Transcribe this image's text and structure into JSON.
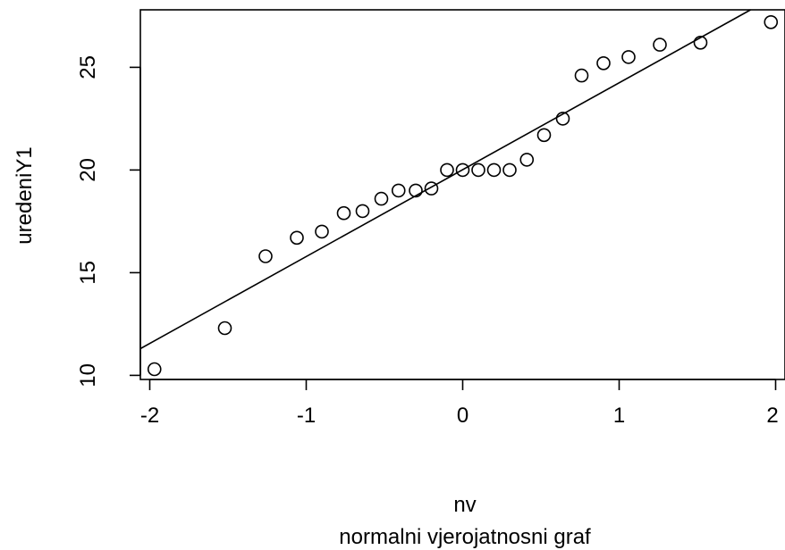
{
  "chart_data": {
    "type": "scatter",
    "title": "",
    "xlabel": "nv",
    "subtitle": "normalni vjerojatnosni graf",
    "ylabel": "uredeniY1",
    "xlim": [
      -2.06,
      2.06
    ],
    "ylim": [
      9.8,
      27.8
    ],
    "x_ticks": [
      -2,
      -1,
      0,
      1,
      2
    ],
    "y_ticks": [
      10,
      15,
      20,
      25
    ],
    "x_tick_labels": [
      "-2",
      "-1",
      "0",
      "1",
      "2"
    ],
    "y_tick_labels": [
      "10",
      "15",
      "20",
      "25"
    ],
    "grid": false,
    "legend": false,
    "points": [
      {
        "x": -1.97,
        "y": 10.3
      },
      {
        "x": -1.52,
        "y": 12.3
      },
      {
        "x": -1.26,
        "y": 15.8
      },
      {
        "x": -1.06,
        "y": 16.7
      },
      {
        "x": -0.9,
        "y": 17.0
      },
      {
        "x": -0.76,
        "y": 17.9
      },
      {
        "x": -0.64,
        "y": 18.0
      },
      {
        "x": -0.52,
        "y": 18.6
      },
      {
        "x": -0.41,
        "y": 19.0
      },
      {
        "x": -0.3,
        "y": 19.0
      },
      {
        "x": -0.2,
        "y": 19.1
      },
      {
        "x": -0.1,
        "y": 20.0
      },
      {
        "x": 0.0,
        "y": 20.0
      },
      {
        "x": 0.1,
        "y": 20.0
      },
      {
        "x": 0.2,
        "y": 20.0
      },
      {
        "x": 0.3,
        "y": 20.0
      },
      {
        "x": 0.41,
        "y": 20.5
      },
      {
        "x": 0.52,
        "y": 21.7
      },
      {
        "x": 0.64,
        "y": 22.5
      },
      {
        "x": 0.76,
        "y": 24.6
      },
      {
        "x": 0.9,
        "y": 25.2
      },
      {
        "x": 1.06,
        "y": 25.5
      },
      {
        "x": 1.26,
        "y": 26.1
      },
      {
        "x": 1.52,
        "y": 26.2
      },
      {
        "x": 1.97,
        "y": 27.2
      }
    ],
    "reference_line": {
      "x1": -2.06,
      "y1": 11.3,
      "x2": 1.84,
      "y2": 27.8
    }
  }
}
